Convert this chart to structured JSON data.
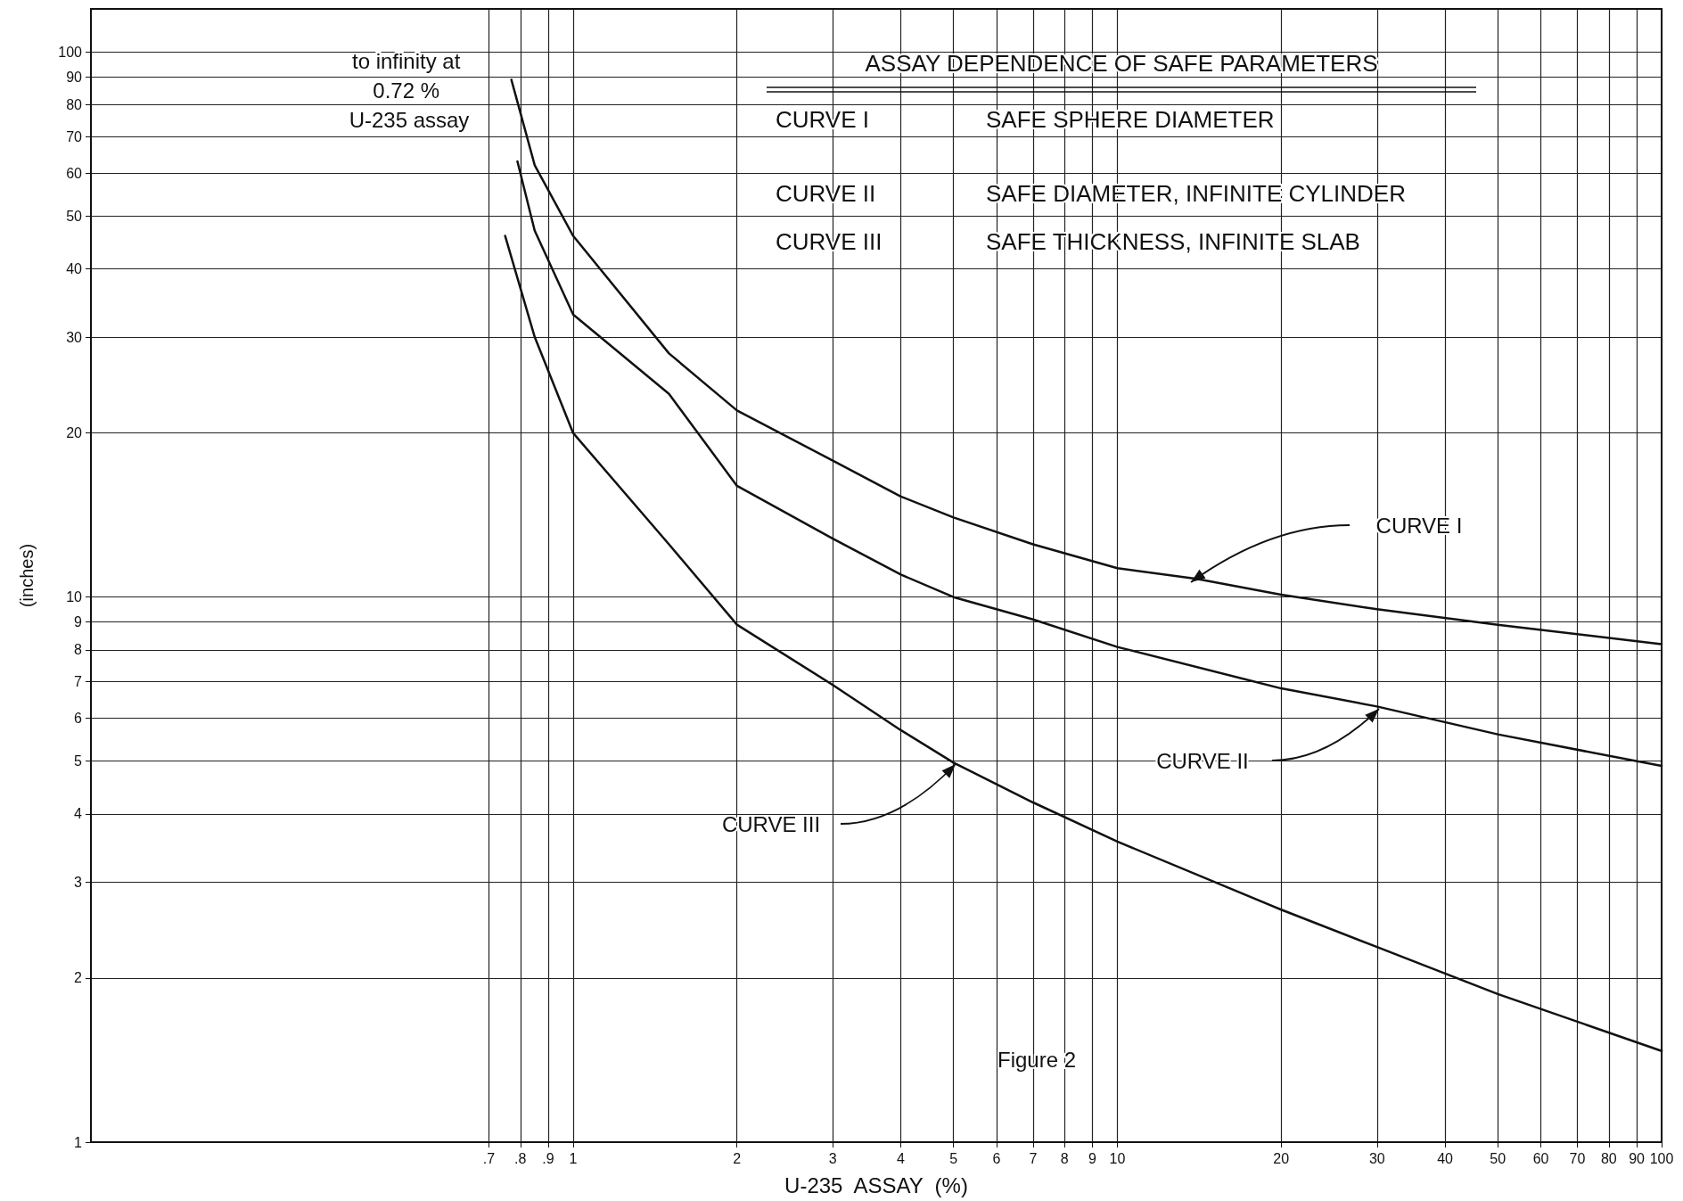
{
  "chart_data": {
    "type": "line",
    "title": "ASSAY DEPENDENCE OF SAFE PARAMETERS",
    "xlabel": "U-235  ASSAY  (%)",
    "ylabel": "(inches)",
    "log": "xy",
    "grid": true,
    "marker": "none",
    "line_style": "solid",
    "xlim": [
      0.13,
      100
    ],
    "ylim": [
      1,
      120
    ],
    "xticks": [
      {
        "value": 0.7,
        "label": ".7"
      },
      {
        "value": 0.8,
        "label": ".8"
      },
      {
        "value": 0.9,
        "label": ".9"
      },
      1,
      2,
      3,
      4,
      5,
      6,
      7,
      8,
      9,
      10,
      20,
      30,
      40,
      50,
      60,
      70,
      80,
      90,
      100
    ],
    "yticks": [
      1,
      2,
      3,
      4,
      5,
      6,
      7,
      8,
      9,
      10,
      20,
      30,
      40,
      50,
      60,
      70,
      80,
      90,
      100
    ],
    "series": [
      {
        "color": "#111111",
        "x": [
          0.77,
          0.85,
          1,
          1.5,
          2,
          3,
          4,
          5,
          7,
          10,
          14,
          20,
          30,
          50,
          100
        ],
        "values": [
          89,
          62,
          46,
          28,
          22,
          17.8,
          15.3,
          14,
          12.5,
          11.3,
          10.8,
          10.1,
          9.5,
          8.9,
          8.2
        ]
      },
      {
        "color": "#111111",
        "x": [
          0.79,
          0.85,
          1,
          1.5,
          2,
          3,
          4,
          5,
          7,
          10,
          20,
          30,
          50,
          100
        ],
        "values": [
          63,
          47,
          33,
          23.6,
          16,
          12.8,
          11,
          10,
          9.1,
          8.1,
          6.8,
          6.3,
          5.6,
          4.9
        ]
      },
      {
        "color": "#111111",
        "x": [
          0.75,
          0.85,
          1,
          1.5,
          2,
          3,
          4,
          5,
          7,
          10,
          20,
          30,
          50,
          100
        ],
        "values": [
          46,
          30,
          20,
          12.5,
          8.9,
          6.9,
          5.7,
          4.97,
          4.2,
          3.56,
          2.67,
          2.28,
          1.87,
          1.47
        ]
      }
    ],
    "annotations": [
      "to infinity at 0.72 % U-235 assay",
      "CURVE I\tSAFE SPHERE DIAMETER",
      "CURVE II\tSAFE DIAMETER, INFINITE CYLINDER",
      "CURVE III\tSAFE THICKNESS, INFINITE SLAB",
      "Figure 2",
      "CURVE I",
      "CURVE II",
      "CURVE III"
    ]
  }
}
